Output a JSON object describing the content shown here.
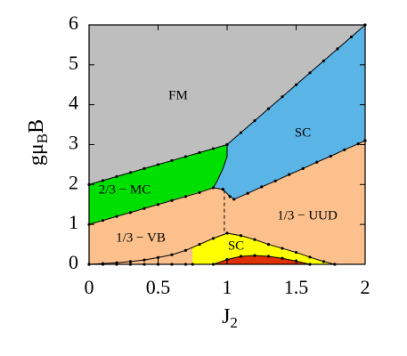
{
  "chart_data": {
    "type": "phase-diagram",
    "x_label": {
      "text": "J",
      "subscript": "2"
    },
    "y_label": {
      "text": "gμ",
      "subscript": "B",
      "suffix": "B"
    },
    "xlim": [
      0,
      2
    ],
    "ylim": [
      0,
      6
    ],
    "xticks": [
      0,
      0.5,
      1,
      1.5,
      2
    ],
    "yticks": [
      0,
      1,
      2,
      3,
      4,
      5,
      6
    ],
    "regions": [
      {
        "label": "1/3 − UUD",
        "color": "#fbc08c",
        "x": [
          0,
          0,
          0.9,
          0.97,
          1.05,
          2,
          2
        ],
        "y": [
          0,
          1,
          1.92,
          1.88,
          1.63,
          3.1,
          0
        ]
      },
      {
        "label": "SC",
        "color": "#ffff00",
        "x": [
          0.75,
          0.75,
          0.8,
          0.9,
          1.0,
          1.1,
          1.2,
          1.3,
          1.4,
          1.5,
          1.6,
          1.7,
          1.78
        ],
        "y": [
          0,
          0.42,
          0.5,
          0.65,
          0.78,
          0.72,
          0.62,
          0.5,
          0.4,
          0.3,
          0.18,
          0.07,
          0
        ]
      },
      {
        "color": "#e03000",
        "x": [
          0.9,
          1.0,
          1.1,
          1.2,
          1.3,
          1.4,
          1.5,
          1.6
        ],
        "y": [
          0,
          0.12,
          0.2,
          0.22,
          0.2,
          0.15,
          0.08,
          0
        ]
      },
      {
        "label": "2/3 − MC",
        "color": "#00e000",
        "x": [
          0,
          1,
          1,
          0.97,
          0.93,
          0.9,
          0
        ],
        "y": [
          2,
          3,
          2.7,
          2.4,
          2.1,
          1.92,
          1
        ]
      },
      {
        "label": "SC",
        "color": "#5ab4e6",
        "x": [
          1,
          2,
          2,
          1.05,
          0.97,
          0.9,
          0.93,
          0.97,
          1
        ],
        "y": [
          3,
          6,
          3.1,
          1.63,
          1.88,
          1.92,
          2.1,
          2.4,
          2.7
        ]
      },
      {
        "label": "FM",
        "color": "#bebebe",
        "x": [
          0,
          2,
          1,
          0
        ],
        "y": [
          6,
          6,
          3,
          2
        ]
      }
    ],
    "extra_labels": [
      "1/3 − VB"
    ],
    "boundaries": [
      {
        "x": [
          0,
          0.1,
          0.2,
          0.3,
          0.4,
          0.5,
          0.6,
          0.7,
          0.8,
          0.9,
          1.0
        ],
        "y": [
          2,
          2.1,
          2.2,
          2.3,
          2.4,
          2.5,
          2.6,
          2.7,
          2.8,
          2.9,
          3
        ],
        "markers": true,
        "dash": false
      },
      {
        "x": [
          1.0,
          1.1,
          1.2,
          1.3,
          1.4,
          1.5,
          1.6,
          1.7,
          1.8,
          1.9,
          2.0
        ],
        "y": [
          3,
          3.3,
          3.6,
          3.9,
          4.2,
          4.5,
          4.8,
          5.1,
          5.4,
          5.7,
          6
        ],
        "markers": true,
        "dash": false
      },
      {
        "x": [
          1,
          1,
          0.97,
          0.93,
          0.9
        ],
        "y": [
          3,
          2.7,
          2.4,
          2.1,
          1.92
        ],
        "markers": false,
        "dash": false
      },
      {
        "x": [
          0,
          0.1,
          0.2,
          0.3,
          0.4,
          0.5,
          0.6,
          0.7,
          0.8,
          0.9,
          0.97
        ],
        "y": [
          1,
          1.1,
          1.2,
          1.3,
          1.4,
          1.5,
          1.6,
          1.7,
          1.8,
          1.92,
          1.88
        ],
        "markers": true,
        "dash": false
      },
      {
        "x": [
          0.97,
          1.02,
          1.05,
          1.15,
          1.25,
          1.35,
          1.45,
          1.55,
          1.65,
          1.75,
          1.85,
          1.95,
          2
        ],
        "y": [
          1.88,
          1.7,
          1.63,
          1.78,
          1.94,
          2.09,
          2.25,
          2.4,
          2.56,
          2.71,
          2.87,
          3.02,
          3.1
        ],
        "markers": true,
        "dash": false
      },
      {
        "x": [
          0.98,
          0.98
        ],
        "y": [
          1.86,
          0.8
        ],
        "markers": false,
        "dash": true
      },
      {
        "x": [
          0,
          0.1,
          0.2,
          0.3,
          0.4,
          0.5,
          0.6,
          0.7,
          0.8,
          0.9,
          1.0,
          1.1,
          1.2,
          1.3,
          1.4,
          1.5,
          1.6,
          1.7,
          1.78
        ],
        "y": [
          0,
          0.02,
          0.04,
          0.07,
          0.11,
          0.17,
          0.24,
          0.35,
          0.5,
          0.65,
          0.78,
          0.72,
          0.62,
          0.5,
          0.4,
          0.3,
          0.18,
          0.07,
          0
        ],
        "markers": true,
        "dash": false
      },
      {
        "x": [
          0,
          0.1,
          0.2,
          0.3,
          0.4,
          0.5,
          0.6,
          0.7,
          0.75
        ],
        "y": [
          0,
          0,
          0,
          0,
          0,
          0,
          0,
          0,
          0
        ],
        "markers": true,
        "dash": false
      },
      {
        "x": [
          0.9,
          1.0,
          1.1,
          1.2,
          1.3,
          1.4,
          1.5,
          1.6
        ],
        "y": [
          0,
          0.12,
          0.2,
          0.22,
          0.2,
          0.15,
          0.08,
          0
        ],
        "markers": true,
        "dash": false
      }
    ]
  }
}
